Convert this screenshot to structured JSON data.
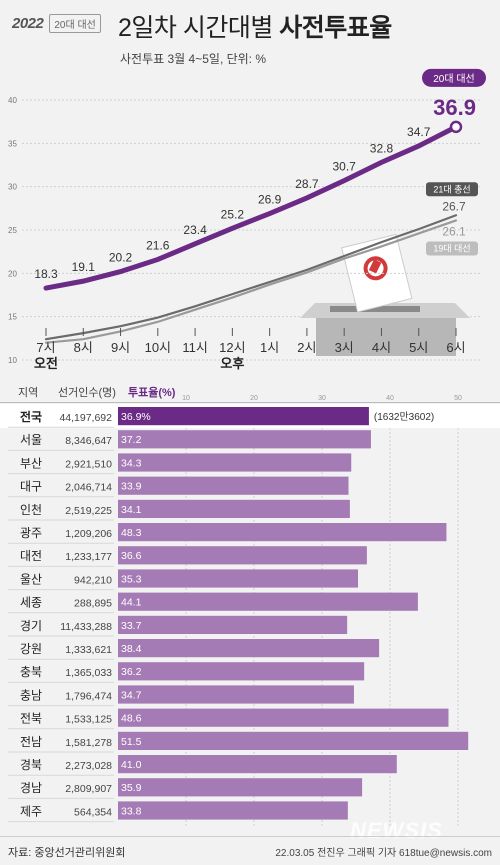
{
  "header": {
    "logo_year": "2022",
    "logo_sub": "20대 대선",
    "title_light": "2일차 시간대별 ",
    "title_bold": "사전투표율",
    "subtitle": "사전투표 3월 4~5일, 단위: %"
  },
  "colors": {
    "purple": "#6a2a86",
    "purple_bar": "#a57bb5",
    "gray_dark": "#6b6b6b",
    "gray_light": "#9a9a9a"
  },
  "chart_data": [
    {
      "type": "line",
      "x": [
        "7시",
        "8시",
        "9시",
        "10시",
        "11시",
        "12시",
        "1시",
        "2시",
        "3시",
        "4시",
        "5시",
        "6시"
      ],
      "x_sublabels": [
        "오전",
        "",
        "",
        "",
        "",
        "오후",
        "",
        "",
        "",
        "",
        "",
        ""
      ],
      "ylim": [
        10,
        40
      ],
      "yticks": [
        10,
        15,
        20,
        25,
        30,
        35,
        40
      ],
      "series": [
        {
          "name": "20대 대선",
          "values": [
            18.3,
            19.1,
            20.2,
            21.6,
            23.4,
            25.2,
            26.9,
            28.7,
            30.7,
            32.8,
            34.7,
            36.9
          ],
          "label_last": "36.9"
        },
        {
          "name": "21대 총선",
          "values": [
            12.4,
            13.1,
            13.9,
            14.9,
            16.2,
            17.6,
            19.0,
            20.4,
            22.0,
            23.6,
            25.1,
            26.7
          ],
          "label_last": "26.7"
        },
        {
          "name": "19대 대선",
          "values": [
            12.0,
            12.4,
            13.3,
            14.4,
            15.8,
            17.2,
            18.7,
            20.1,
            21.7,
            23.1,
            24.6,
            26.1
          ],
          "label_last": "26.1"
        }
      ]
    },
    {
      "type": "bar",
      "columns": [
        "지역",
        "선거인수(명)",
        "투표율(%)"
      ],
      "xlim": [
        0,
        55
      ],
      "xticks": [
        10,
        20,
        30,
        40,
        50
      ],
      "national_note": "(1632만3602)",
      "rows": [
        {
          "region": "전국",
          "voters": "44,197,692",
          "rate": 36.9,
          "label": "36.9%"
        },
        {
          "region": "서울",
          "voters": "8,346,647",
          "rate": 37.2,
          "label": "37.2"
        },
        {
          "region": "부산",
          "voters": "2,921,510",
          "rate": 34.3,
          "label": "34.3"
        },
        {
          "region": "대구",
          "voters": "2,046,714",
          "rate": 33.9,
          "label": "33.9"
        },
        {
          "region": "인천",
          "voters": "2,519,225",
          "rate": 34.1,
          "label": "34.1"
        },
        {
          "region": "광주",
          "voters": "1,209,206",
          "rate": 48.3,
          "label": "48.3"
        },
        {
          "region": "대전",
          "voters": "1,233,177",
          "rate": 36.6,
          "label": "36.6"
        },
        {
          "region": "울산",
          "voters": "942,210",
          "rate": 35.3,
          "label": "35.3"
        },
        {
          "region": "세종",
          "voters": "288,895",
          "rate": 44.1,
          "label": "44.1"
        },
        {
          "region": "경기",
          "voters": "11,433,288",
          "rate": 33.7,
          "label": "33.7"
        },
        {
          "region": "강원",
          "voters": "1,333,621",
          "rate": 38.4,
          "label": "38.4"
        },
        {
          "region": "충북",
          "voters": "1,365,033",
          "rate": 36.2,
          "label": "36.2"
        },
        {
          "region": "충남",
          "voters": "1,796,474",
          "rate": 34.7,
          "label": "34.7"
        },
        {
          "region": "전북",
          "voters": "1,533,125",
          "rate": 48.6,
          "label": "48.6"
        },
        {
          "region": "전남",
          "voters": "1,581,278",
          "rate": 51.5,
          "label": "51.5"
        },
        {
          "region": "경북",
          "voters": "2,273,028",
          "rate": 41.0,
          "label": "41.0"
        },
        {
          "region": "경남",
          "voters": "2,809,907",
          "rate": 35.9,
          "label": "35.9"
        },
        {
          "region": "제주",
          "voters": "564,354",
          "rate": 33.8,
          "label": "33.8"
        }
      ]
    }
  ],
  "footer": {
    "source": "자료: 중앙선거관리위원회",
    "credit": "22.03.05 전진우 그래픽 기자 618tue@newsis.com",
    "watermark": "NEWSIS"
  }
}
